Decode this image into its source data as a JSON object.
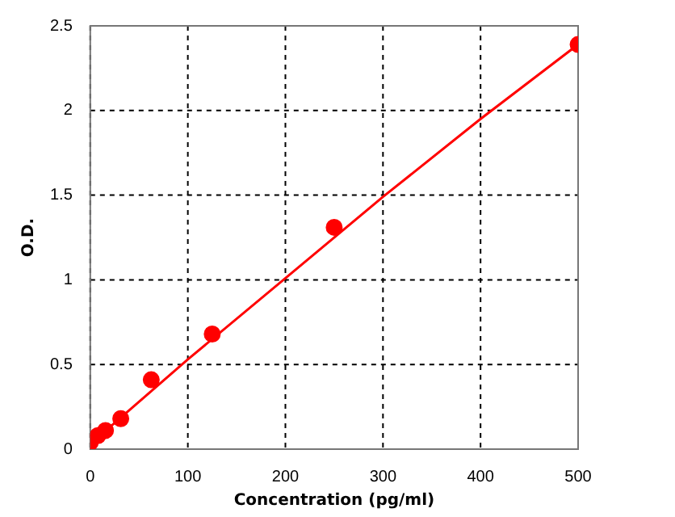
{
  "chart_data": {
    "type": "scatter",
    "xlabel": "Concentration (pg/ml)",
    "ylabel": "O.D.",
    "series": [
      {
        "type": "scatter",
        "color": "#ff0000",
        "x": [
          0,
          7.8,
          15.6,
          31.25,
          62.5,
          125,
          250,
          500
        ],
        "values": [
          0.04,
          0.08,
          0.11,
          0.18,
          0.41,
          0.68,
          1.31,
          2.39
        ],
        "marker": "circle"
      },
      {
        "type": "line",
        "color": "#ff0000",
        "x": [
          0,
          100,
          200,
          300,
          400,
          500
        ],
        "values": [
          0.03,
          0.53,
          1.01,
          1.49,
          1.95,
          2.39
        ],
        "marker": "none",
        "line_style": "solid"
      }
    ],
    "xlim": [
      0,
      500
    ],
    "ylim": [
      0,
      2.5
    ],
    "xticks": [
      0,
      100,
      200,
      300,
      400,
      500
    ],
    "yticks": [
      0,
      0.5,
      1,
      1.5,
      2,
      2.5
    ],
    "grid": true,
    "legend": false
  }
}
